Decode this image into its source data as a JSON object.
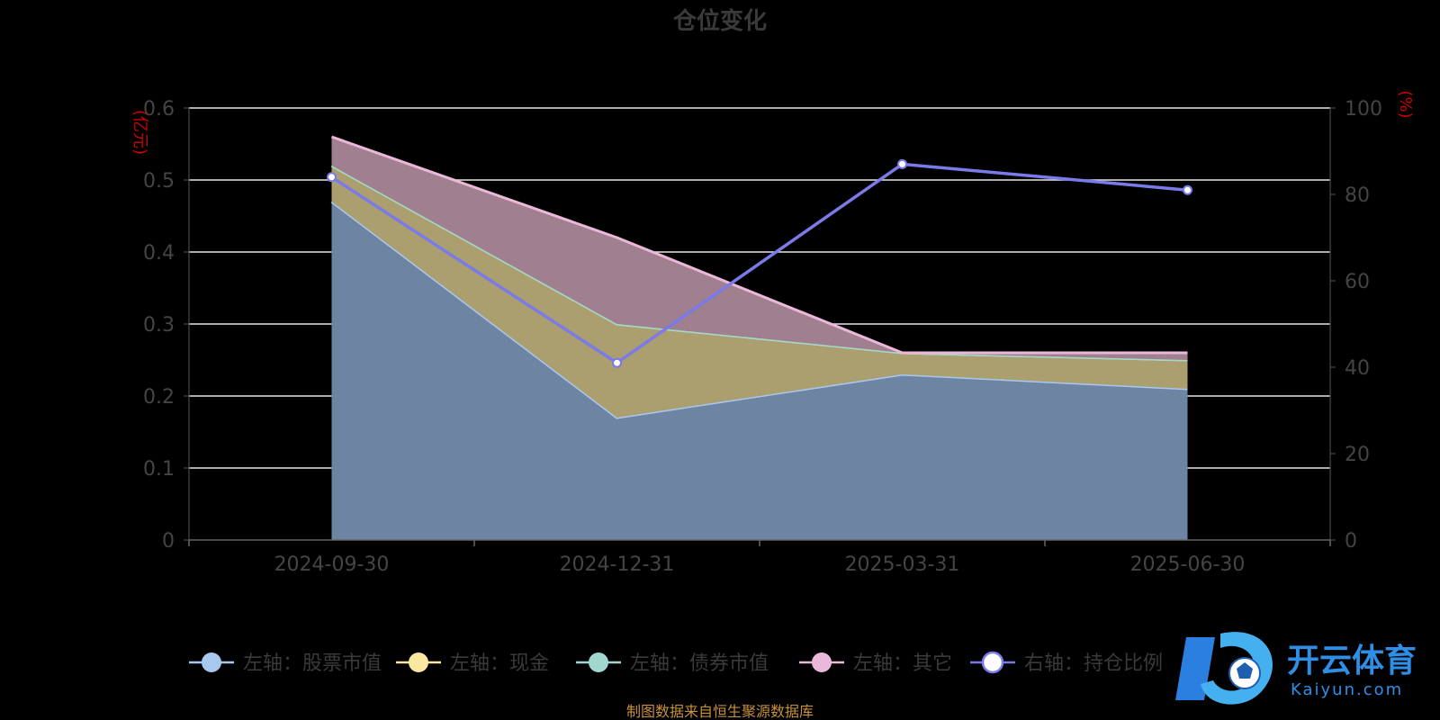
{
  "chart_data": {
    "type": "area",
    "title": "仓位变化",
    "categories": [
      "2024-09-30",
      "2024-12-31",
      "2025-03-31",
      "2025-06-30"
    ],
    "left_axis": {
      "unit": "(亿元)",
      "ylim": [
        0,
        0.6
      ],
      "ticks": [
        "0",
        "0.1",
        "0.2",
        "0.3",
        "0.4",
        "0.5",
        "0.6"
      ]
    },
    "right_axis": {
      "unit": "(%)",
      "ylim": [
        0,
        100
      ],
      "ticks": [
        "0",
        "20",
        "40",
        "60",
        "80",
        "100"
      ]
    },
    "series": [
      {
        "name": "左轴：股票市值",
        "axis": "left",
        "type": "area",
        "color": "#a8c8f0",
        "fill": "#6e84a3",
        "values": [
          0.47,
          0.17,
          0.23,
          0.21
        ]
      },
      {
        "name": "左轴：现金",
        "axis": "left",
        "type": "area",
        "color": "#fbe8a0",
        "fill": "#ab9f6f",
        "values": [
          0.05,
          0.13,
          0.03,
          0.04
        ]
      },
      {
        "name": "左轴：债券市值",
        "axis": "left",
        "type": "area",
        "color": "#a0d8d0",
        "fill": "#7fa8a0",
        "values": [
          0,
          0,
          0,
          0
        ]
      },
      {
        "name": "左轴：其它",
        "axis": "left",
        "type": "area",
        "color": "#eab8d8",
        "fill": "#a0808e",
        "values": [
          0.04,
          0.12,
          0.0,
          0.01
        ]
      },
      {
        "name": "右轴：持仓比例",
        "axis": "right",
        "type": "line",
        "color": "#7a7ae8",
        "values": [
          84,
          41,
          87,
          81
        ]
      }
    ],
    "grid": true,
    "legend_position": "bottom"
  },
  "source_note": "制图数据来自恒生聚源数据库",
  "watermark": {
    "name": "开云体育",
    "sub": "Kaiyun.com"
  }
}
